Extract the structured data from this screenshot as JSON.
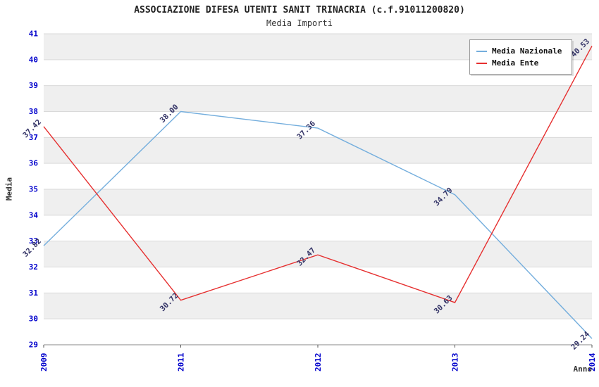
{
  "chart_data": {
    "type": "line",
    "title": "ASSOCIAZIONE DIFESA UTENTI SANIT TRINACRIA (c.f.91011200820)",
    "subtitle": "Media Importi",
    "xlabel": "Anno",
    "ylabel": "Media",
    "categories": [
      "2009",
      "2011",
      "2012",
      "2013",
      "2014"
    ],
    "series": [
      {
        "name": "Media Nazionale",
        "color": "#74aedd",
        "values": [
          32.82,
          38.0,
          37.36,
          34.79,
          29.24
        ],
        "labels": [
          "32.82",
          "38.00",
          "37.36",
          "34.79",
          "29.24"
        ]
      },
      {
        "name": "Media Ente",
        "color": "#e63030",
        "values": [
          37.42,
          30.72,
          32.47,
          30.63,
          40.53
        ],
        "labels": [
          "37.42",
          "30.72",
          "32.47",
          "30.63",
          "40.53"
        ]
      }
    ],
    "ylim": [
      29,
      41
    ],
    "ytick_step": 1,
    "yticks": [
      "29",
      "30",
      "31",
      "32",
      "33",
      "34",
      "35",
      "36",
      "37",
      "38",
      "39",
      "40",
      "41"
    ],
    "legend_position": "top-right",
    "grid": true,
    "band_colors": [
      "#ffffff",
      "#efefef"
    ],
    "colors": {
      "tick_label": "#0000cc",
      "point_label": "#333366",
      "text": "#222222",
      "gridline": "#d9d9d9",
      "axis": "#888888"
    }
  }
}
